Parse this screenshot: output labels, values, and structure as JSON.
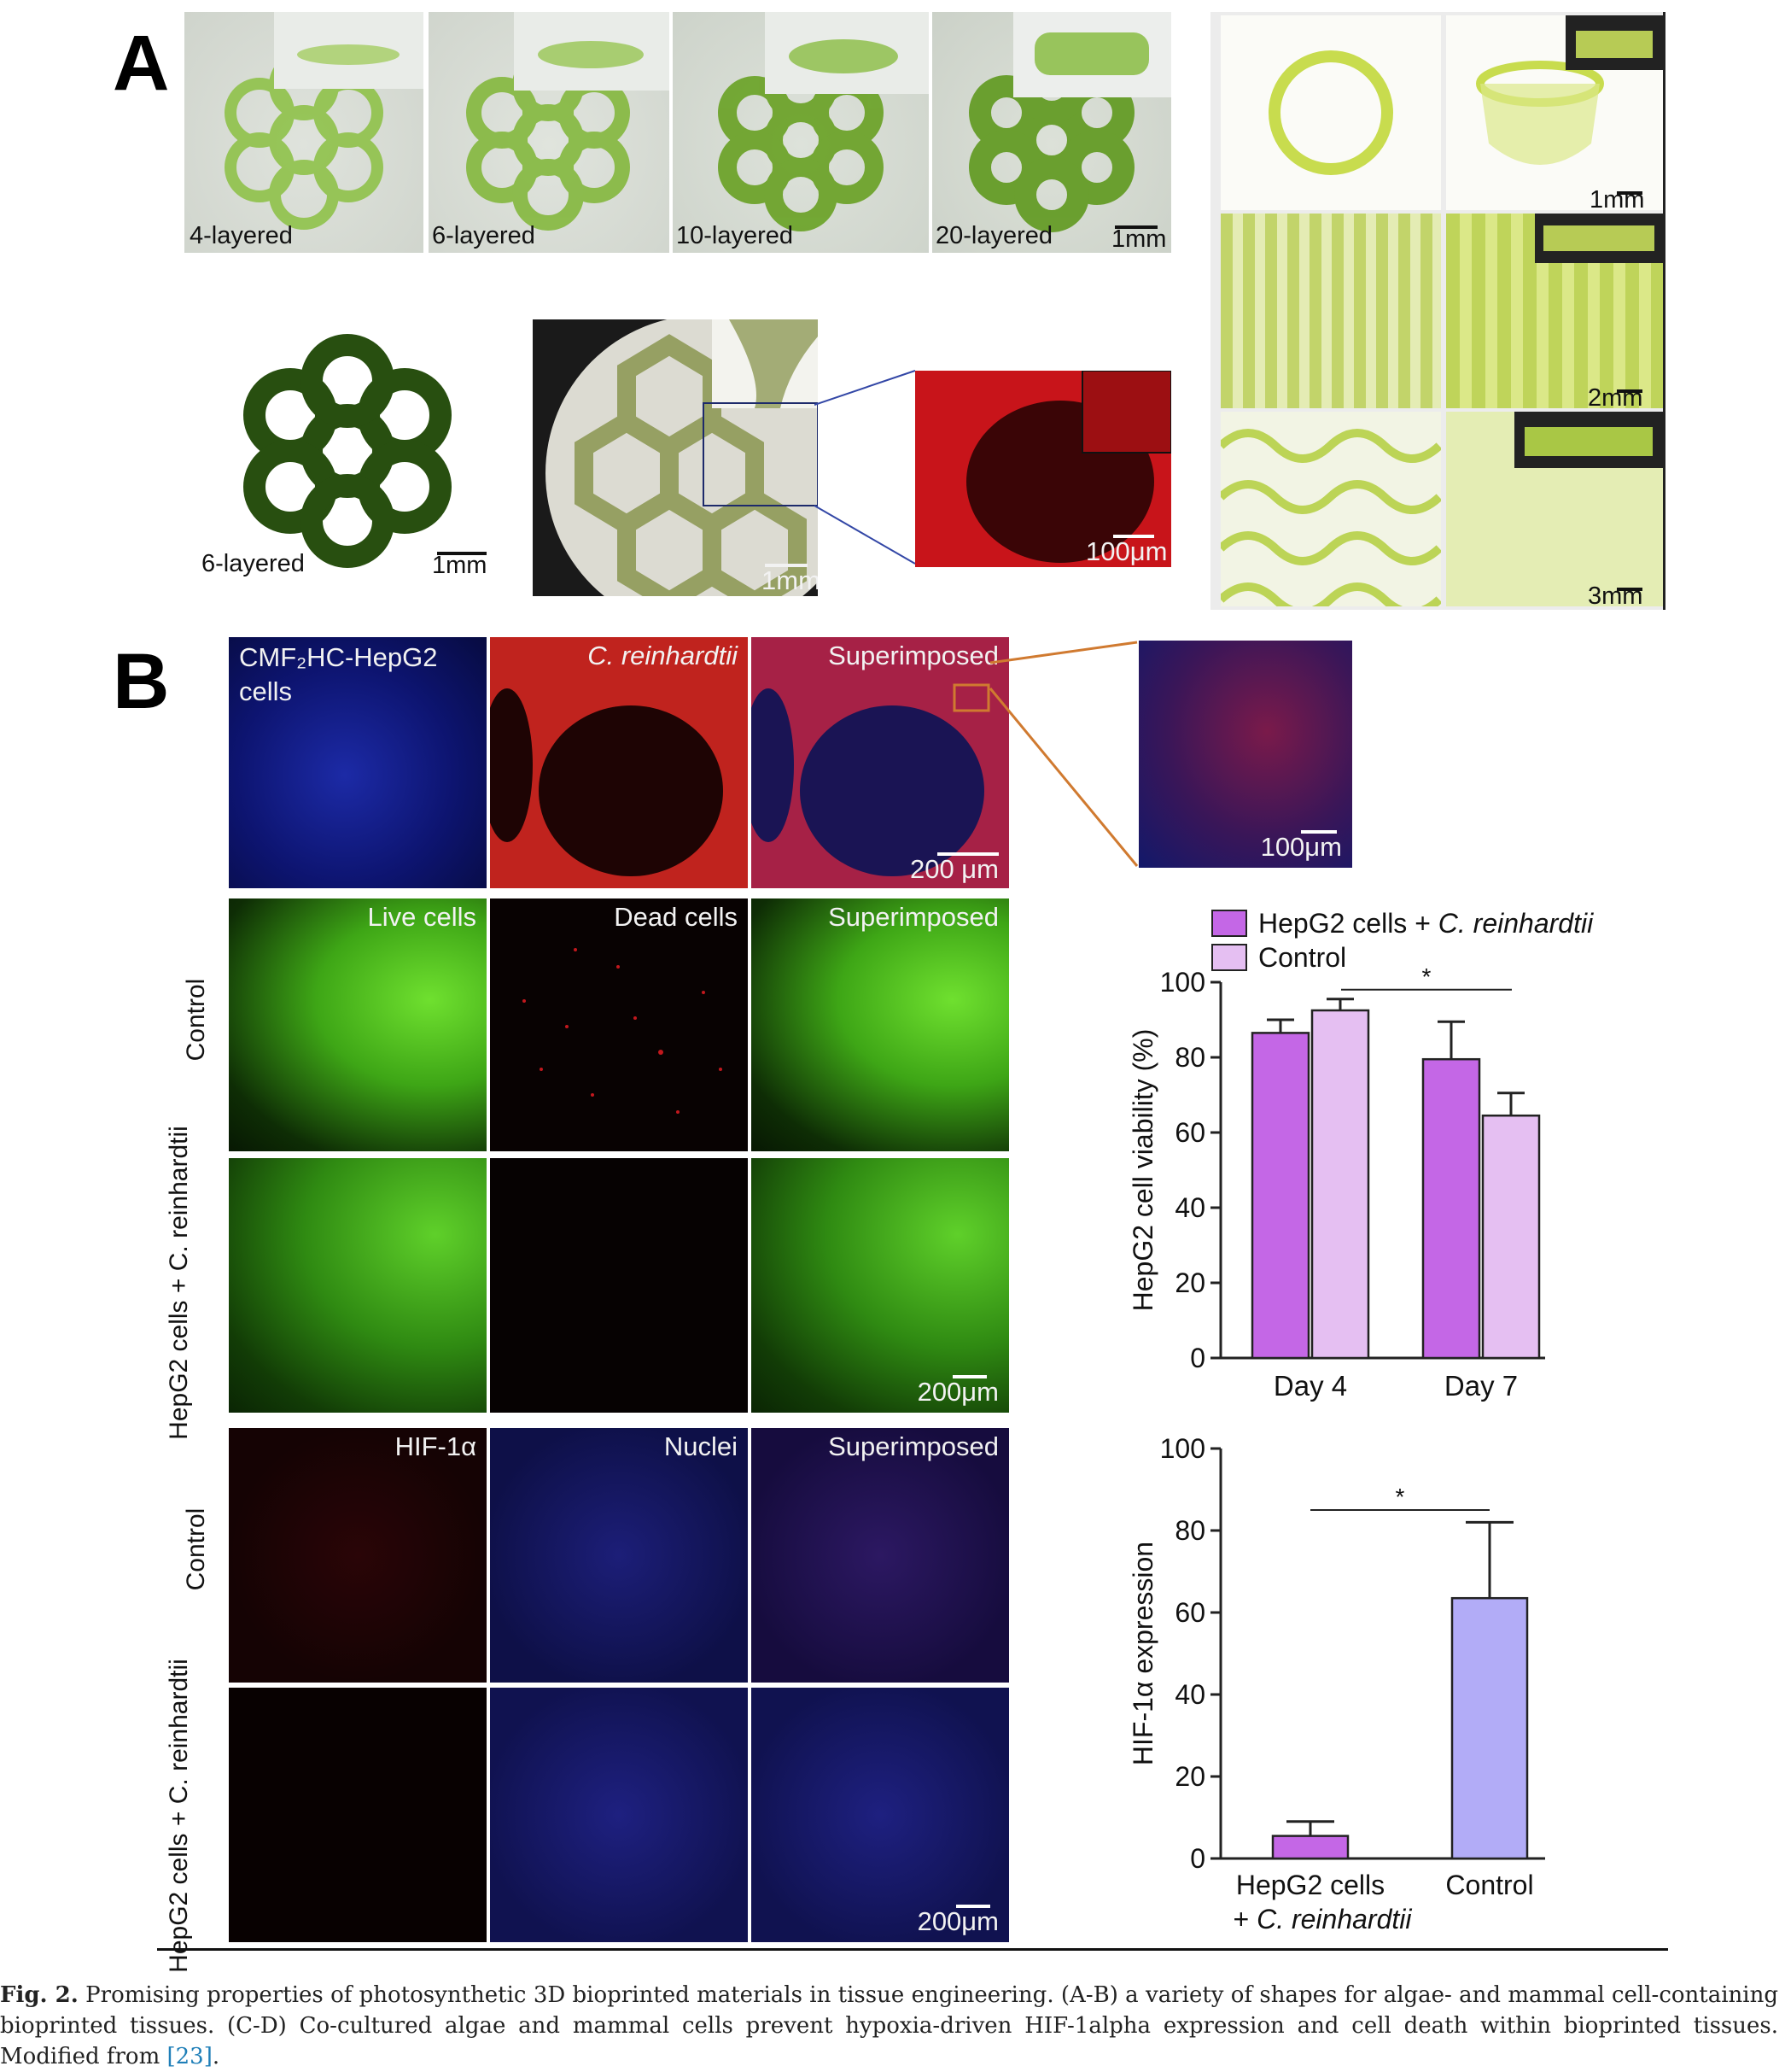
{
  "panels": {
    "a": "A",
    "b": "B"
  },
  "panel_a": {
    "top_labels": [
      "4-layered",
      "6-layered",
      "10-layered",
      "20-layered"
    ],
    "top_scale": "1mm",
    "mid_label": "6-layered",
    "mid_scales": [
      "1mm",
      "1mm",
      "100μm"
    ],
    "right_scales": [
      "1mm",
      "2mm",
      "3mm"
    ]
  },
  "panel_b": {
    "row1_titles": [
      "CMF₂HC-HepG2 cells",
      "C. reinhardtii",
      "Superimposed"
    ],
    "row1_scale": "200 μm",
    "zoom_scale": "100μm",
    "row2_titles": [
      "Live cells",
      "Dead cells",
      "Superimposed"
    ],
    "row_labels": [
      "Control",
      "HepG2 cells + C. reinhardtii",
      "Control",
      "HepG2 cells + C. reinhardtii"
    ],
    "row3_scale": "200μm",
    "row4_titles": [
      "HIF-1α",
      "Nuclei",
      "Superimposed"
    ],
    "row5_scale": "200μm"
  },
  "chart_data": [
    {
      "type": "bar",
      "categories": [
        "Day 4",
        "Day 7"
      ],
      "series": [
        {
          "name": "HepG2 cells + C. reinhardtii",
          "values": [
            86.5,
            79.5
          ],
          "errors": [
            3.5,
            10
          ]
        },
        {
          "name": "Control",
          "values": [
            92.5,
            64.5
          ],
          "errors": [
            3,
            6
          ]
        }
      ],
      "ylabel": "HepG2 cell viability (%)",
      "ylim": [
        0,
        100
      ],
      "yticks": [
        "0",
        "20",
        "40",
        "60",
        "80",
        "100"
      ],
      "significance": "*",
      "colors": [
        "#c467e6",
        "#e5bff2"
      ]
    },
    {
      "type": "bar",
      "categories": [
        "HepG2 cells + C. reinhardtii",
        "Control"
      ],
      "values": [
        5.5,
        63.5
      ],
      "errors": [
        3.5,
        18.5
      ],
      "ylabel": "HIF-1α expression",
      "ylim": [
        0,
        100
      ],
      "yticks": [
        "0",
        "20",
        "40",
        "60",
        "80",
        "100"
      ],
      "significance": "*",
      "colors": [
        "#c467e6",
        "#b2acf7"
      ]
    }
  ],
  "caption": {
    "label": "Fig. 2.",
    "text": " Promising properties of photosynthetic 3D bioprinted materials in tissue engineering. (A-B) a variety of shapes for algae- and mammal cell-containing bioprinted tissues. (C-D) Co-cultured algae and mammal cells prevent hypoxia-driven HIF-1alpha expression and cell death within bioprinted tissues. Modified from ",
    "ref": "[23]",
    "end": "."
  }
}
